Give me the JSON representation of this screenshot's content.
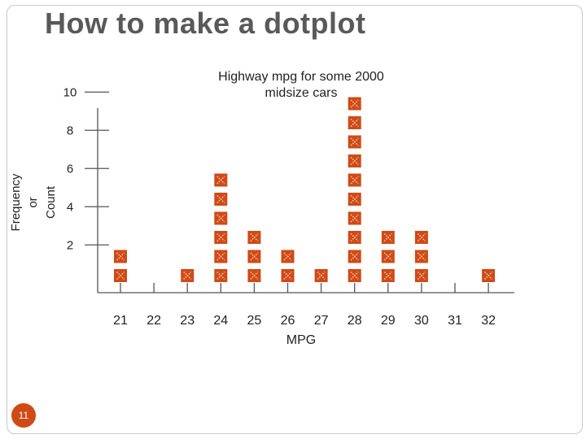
{
  "slide": {
    "title": "How to make a dotplot",
    "number": "11"
  },
  "colors": {
    "marker": "#d04a16",
    "marker_dot": "#f4c2a8",
    "axis": "#555555",
    "text": "#222222",
    "title": "#595959",
    "accent": "#d04a16"
  },
  "chart_data": {
    "type": "dotplot",
    "title_lines": [
      "Highway mpg for some 2000",
      "midsize cars"
    ],
    "xlabel": "MPG",
    "ylabel_lines": [
      "Frequency",
      "or",
      "Count"
    ],
    "x_categories": [
      21,
      22,
      23,
      24,
      25,
      26,
      27,
      28,
      29,
      30,
      31,
      32
    ],
    "x_tick_labels": [
      "21",
      "22",
      "23",
      "24",
      "25",
      "26",
      "27",
      "28",
      "29",
      "30",
      "31",
      "32"
    ],
    "y_ticks": [
      2,
      4,
      6,
      8,
      10
    ],
    "y_tick_labels": [
      "2",
      "4",
      "6",
      "8",
      "10"
    ],
    "counts": [
      2,
      0,
      1,
      6,
      3,
      2,
      1,
      10,
      3,
      3,
      0,
      1
    ],
    "marker_shape": "square-x"
  }
}
